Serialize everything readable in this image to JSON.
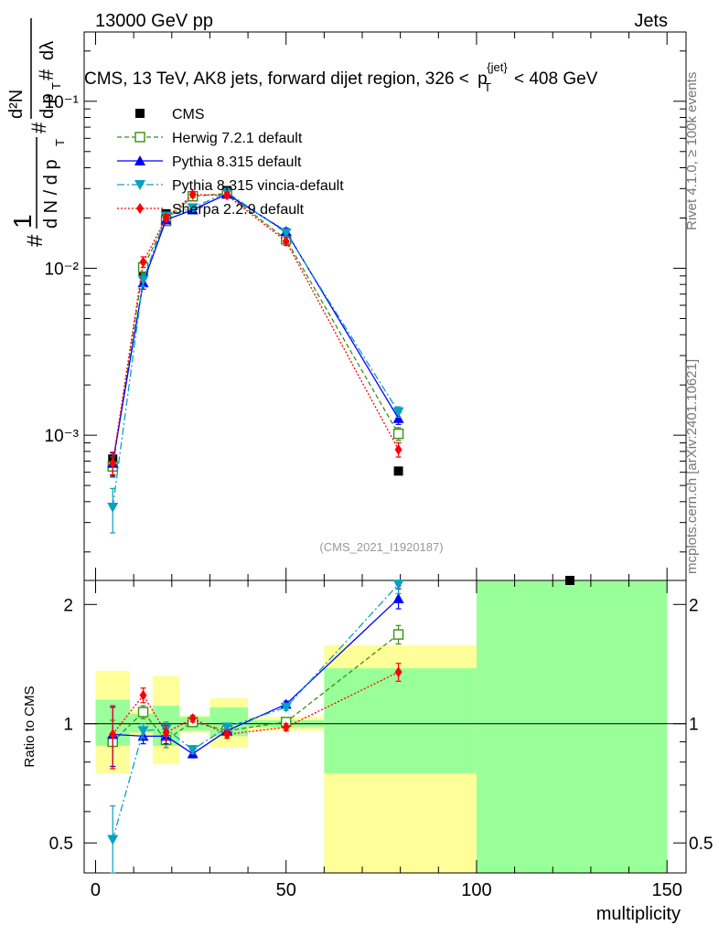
{
  "header": {
    "energy_label": "13000 GeV pp",
    "category_label": "Jets"
  },
  "side_labels": {
    "rivet": "Rivet 4.1.0, ≥ 100k events",
    "mcplots": "mcplots.cern.ch [arXiv:2401.10621]"
  },
  "analysis_id": "(CMS_2021_I1920187)",
  "chart_data": [
    {
      "id": "main",
      "type": "line",
      "title": "CMS, 13 TeV, AK8 jets, forward dijet region, 326 < p_T^{jet} < 408 GeV",
      "title_parts": {
        "lead": "CMS, 13 TeV, AK8 jets, forward dijet region, 326 <",
        "p": "p",
        "sub": "T",
        "sup": "{jet}",
        "tail": "< 408 GeV"
      },
      "ylabel": "1/(dN/dp_T) d²N/(dp_T dλ)",
      "ylabel_parts": {
        "one": "1",
        "dN": "d N / d p",
        "dN_sub": "T",
        "hash1": "#",
        "hash2": "#",
        "hash3": "#",
        "d2N": "d²N",
        "dp": "d p",
        "dp_sub": "T",
        "dlambda": "dλ"
      },
      "yscale": "log",
      "ylim": [
        0.000135,
        0.26
      ],
      "xlim": [
        -3,
        155
      ],
      "yticks": [
        {
          "value": 0.1,
          "label": "10⁻¹"
        },
        {
          "value": 0.01,
          "label": "10⁻²"
        },
        {
          "value": 0.001,
          "label": "10⁻³"
        }
      ],
      "legend_position": "top-left",
      "series": [
        {
          "name": "CMS",
          "color": "#000000",
          "marker": "square",
          "x": [
            4.5,
            12.5,
            18.5,
            25.5,
            34.5,
            50.0,
            79.5,
            124.5
          ],
          "y": [
            0.00072,
            0.0094,
            0.0212,
            0.0268,
            0.0292,
            0.0148,
            0.00061,
            0.000125
          ]
        },
        {
          "name": "Herwig 7.2.1 default",
          "color": "#3a8f13",
          "marker": "open-square",
          "dash": "5,3",
          "x": [
            4.5,
            12.5,
            18.5,
            25.5,
            34.5,
            50.0,
            79.5
          ],
          "y": [
            0.00065,
            0.0101,
            0.0192,
            0.027,
            0.028,
            0.0149,
            0.00102
          ],
          "yerr": [
            9e-05,
            0.0008,
            0.001,
            0.001,
            0.001,
            0.0008,
            9e-05
          ]
        },
        {
          "name": "Pythia 8.315 default",
          "color": "#0000ff",
          "marker": "triangle-up",
          "dash": "",
          "x": [
            4.5,
            12.5,
            18.5,
            25.5,
            34.5,
            50.0,
            79.5
          ],
          "y": [
            0.00068,
            0.0082,
            0.0195,
            0.0224,
            0.0278,
            0.0166,
            0.00126
          ],
          "yerr": [
            0.00011,
            0.0007,
            0.001,
            0.001,
            0.001,
            0.0008,
            0.0001
          ]
        },
        {
          "name": "Pythia 8.315 vincia-default",
          "color": "#0aa0c0",
          "marker": "triangle-down",
          "dash": "8,3,2,3",
          "x": [
            4.5,
            12.5,
            18.5,
            25.5,
            34.5,
            50.0,
            79.5
          ],
          "y": [
            0.00037,
            0.0085,
            0.0205,
            0.023,
            0.0285,
            0.0163,
            0.00138
          ],
          "yerr": [
            0.00011,
            0.0007,
            0.001,
            0.001,
            0.001,
            0.0008,
            0.0001
          ]
        },
        {
          "name": "Sherpa 2.2.9 default",
          "color": "#ff0000",
          "marker": "diamond",
          "dash": "2,2",
          "x": [
            4.5,
            12.5,
            18.5,
            25.5,
            34.5,
            50.0,
            79.5
          ],
          "y": [
            0.00068,
            0.0109,
            0.02,
            0.0276,
            0.0274,
            0.0145,
            0.00082
          ],
          "yerr": [
            0.0001,
            0.0008,
            0.001,
            0.001,
            0.001,
            0.0008,
            8e-05
          ]
        }
      ]
    },
    {
      "id": "ratio",
      "type": "line",
      "ylabel": "Ratio to CMS",
      "xlabel": "multiplicity",
      "yscale": "log",
      "ylim": [
        0.42,
        2.3
      ],
      "xlim": [
        -3,
        155
      ],
      "xticks": [
        0,
        50,
        100,
        150
      ],
      "yticks": [
        0.5,
        1,
        2
      ],
      "reference_line": 1,
      "uncertainty_bands": [
        {
          "x_range": [
            0,
            9
          ],
          "inner": [
            0.88,
            1.15
          ],
          "outer": [
            0.75,
            1.36
          ]
        },
        {
          "x_range": [
            9,
            15
          ],
          "inner": [
            0.95,
            1.06
          ],
          "outer": [
            0.93,
            1.08
          ]
        },
        {
          "x_range": [
            15,
            22
          ],
          "inner": [
            0.88,
            1.11
          ],
          "outer": [
            0.79,
            1.32
          ]
        },
        {
          "x_range": [
            22,
            30
          ],
          "inner": [
            0.96,
            1.04
          ],
          "outer": [
            0.95,
            1.05
          ]
        },
        {
          "x_range": [
            30,
            40
          ],
          "inner": [
            0.93,
            1.1
          ],
          "outer": [
            0.87,
            1.16
          ]
        },
        {
          "x_range": [
            40,
            60
          ],
          "inner": [
            0.98,
            1.02
          ],
          "outer": [
            0.96,
            1.04
          ]
        },
        {
          "x_range": [
            60,
            100
          ],
          "inner": [
            0.75,
            1.38
          ],
          "outer": [
            0.34,
            1.58
          ]
        },
        {
          "x_range": [
            100,
            150
          ],
          "inner": [
            0.01,
            100
          ],
          "outer": [
            0.01,
            100
          ]
        }
      ],
      "series": [
        {
          "name": "Herwig 7.2.1 default",
          "color": "#3a8f13",
          "marker": "open-square",
          "dash": "5,3",
          "x": [
            4.5,
            12.5,
            18.5,
            25.5,
            34.5,
            50.0,
            79.5
          ],
          "y": [
            0.9,
            1.07,
            0.91,
            1.01,
            0.96,
            1.01,
            1.68
          ],
          "yerr": [
            0.12,
            0.04,
            0.04,
            0.02,
            0.02,
            0.02,
            0.09
          ]
        },
        {
          "name": "Pythia 8.315 default",
          "color": "#0000ff",
          "marker": "triangle-up",
          "dash": "",
          "x": [
            4.5,
            12.5,
            18.5,
            25.5,
            34.5,
            50.0,
            79.5
          ],
          "y": [
            0.94,
            0.93,
            0.93,
            0.84,
            0.96,
            1.12,
            2.07
          ],
          "yerr": [
            0.16,
            0.04,
            0.04,
            0.02,
            0.02,
            0.02,
            0.12
          ]
        },
        {
          "name": "Pythia 8.315 vincia-default",
          "color": "#0aa0c0",
          "marker": "triangle-down",
          "dash": "8,3,2,3",
          "x": [
            4.5,
            12.5,
            18.5,
            25.5,
            34.5,
            50.0,
            79.5
          ],
          "y": [
            0.51,
            0.96,
            0.97,
            0.86,
            0.98,
            1.1,
            2.25
          ],
          "yerr": [
            0.11,
            0.04,
            0.04,
            0.02,
            0.02,
            0.02,
            0.12
          ]
        },
        {
          "name": "Sherpa 2.2.9 default",
          "color": "#ff0000",
          "marker": "diamond",
          "dash": "2,2",
          "x": [
            4.5,
            12.5,
            18.5,
            25.5,
            34.5,
            50.0,
            79.5
          ],
          "y": [
            0.94,
            1.18,
            0.95,
            1.03,
            0.94,
            0.98,
            1.35
          ],
          "yerr": [
            0.17,
            0.05,
            0.04,
            0.02,
            0.02,
            0.02,
            0.07
          ]
        }
      ]
    }
  ]
}
